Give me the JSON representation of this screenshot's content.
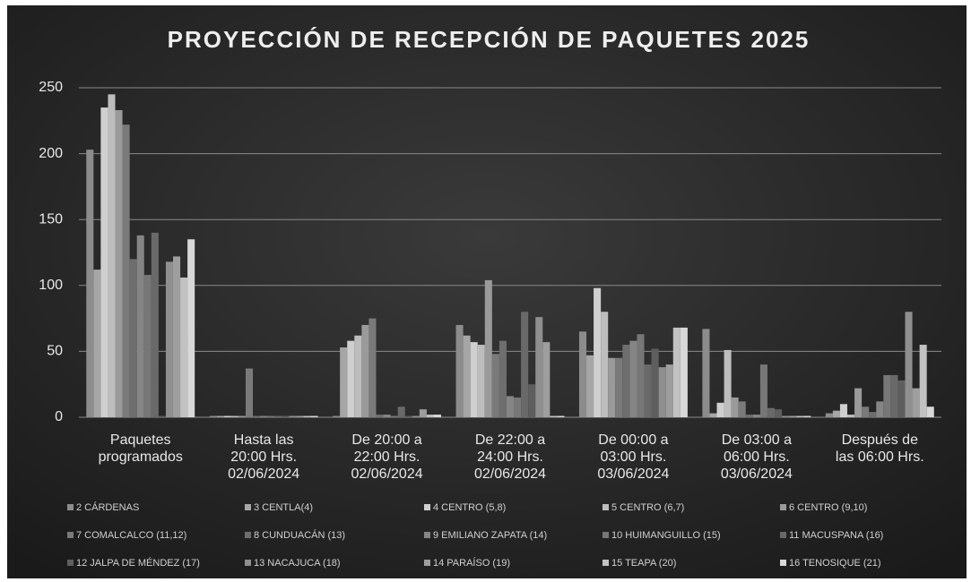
{
  "chart_data": {
    "type": "bar",
    "title": "PROYECCIÓN DE RECEPCIÓN DE PAQUETES 2025",
    "categories": [
      [
        "Paquetes",
        "programados"
      ],
      [
        "Hasta las",
        "20:00 Hrs.",
        "02/06/2024"
      ],
      [
        "De 20:00 a",
        "22:00 Hrs.",
        "02/06/2024"
      ],
      [
        "De 22:00 a",
        "24:00 Hrs.",
        "02/06/2024"
      ],
      [
        "De 00:00 a",
        "03:00 Hrs.",
        "03/06/2024"
      ],
      [
        "De 03:00 a",
        "06:00 Hrs.",
        "03/06/2024"
      ],
      [
        "Después de",
        "las 06:00 Hrs."
      ]
    ],
    "series": [
      {
        "name": "2 CÁRDENAS",
        "color": "#8c8c8c",
        "values": [
          203,
          1,
          1,
          70,
          65,
          67,
          3
        ]
      },
      {
        "name": "3 CENTLA(4)",
        "color": "#a6a6a6",
        "values": [
          112,
          1,
          53,
          62,
          47,
          3,
          5
        ]
      },
      {
        "name": "4 CENTRO (5,8)",
        "color": "#cfcfcf",
        "values": [
          235,
          1,
          58,
          57,
          98,
          11,
          10
        ]
      },
      {
        "name": "5 CENTRO (6,7)",
        "color": "#bdbdbd",
        "values": [
          245,
          1,
          62,
          55,
          80,
          51,
          2
        ]
      },
      {
        "name": "6 CENTRO (9,10)",
        "color": "#9a9a9a",
        "values": [
          233,
          1,
          70,
          104,
          45,
          15,
          22
        ]
      },
      {
        "name": "7 COMALCALCO (11,12)",
        "color": "#7a7a7a",
        "values": [
          222,
          37,
          75,
          48,
          45,
          12,
          8
        ]
      },
      {
        "name": "8 CUNDUACÁN (13)",
        "color": "#6e6e6e",
        "values": [
          120,
          1,
          2,
          58,
          55,
          2,
          4
        ]
      },
      {
        "name": "9 EMILIANO ZAPATA (14)",
        "color": "#858585",
        "values": [
          138,
          1,
          2,
          16,
          58,
          2,
          12
        ]
      },
      {
        "name": "10 HUIMANGUILLO (15)",
        "color": "#777777",
        "values": [
          108,
          1,
          1,
          15,
          63,
          40,
          32
        ]
      },
      {
        "name": "11 MACUSPANA (16)",
        "color": "#696969",
        "values": [
          140,
          1,
          8,
          80,
          40,
          7,
          32
        ]
      },
      {
        "name": "12 JALPA DE MÉNDEZ (17)",
        "color": "#5e5e5e",
        "values": [
          1,
          1,
          1,
          25,
          52,
          6,
          28
        ]
      },
      {
        "name": "13 NACAJUCA (18)",
        "color": "#8f8f8f",
        "values": [
          118,
          1,
          1,
          76,
          38,
          1,
          80
        ]
      },
      {
        "name": "14 PARAÍSO (19)",
        "color": "#9e9e9e",
        "values": [
          122,
          1,
          6,
          57,
          40,
          1,
          22
        ]
      },
      {
        "name": "15 TEAPA (20)",
        "color": "#c2c2c2",
        "values": [
          106,
          1,
          2,
          1,
          68,
          1,
          55
        ]
      },
      {
        "name": "16 TENOSIQUE (21)",
        "color": "#d8d8d8",
        "values": [
          135,
          1,
          2,
          1,
          68,
          1,
          8
        ]
      }
    ],
    "ylim": [
      0,
      250
    ],
    "yticks": [
      0,
      50,
      100,
      150,
      200,
      250
    ],
    "grid": true
  }
}
